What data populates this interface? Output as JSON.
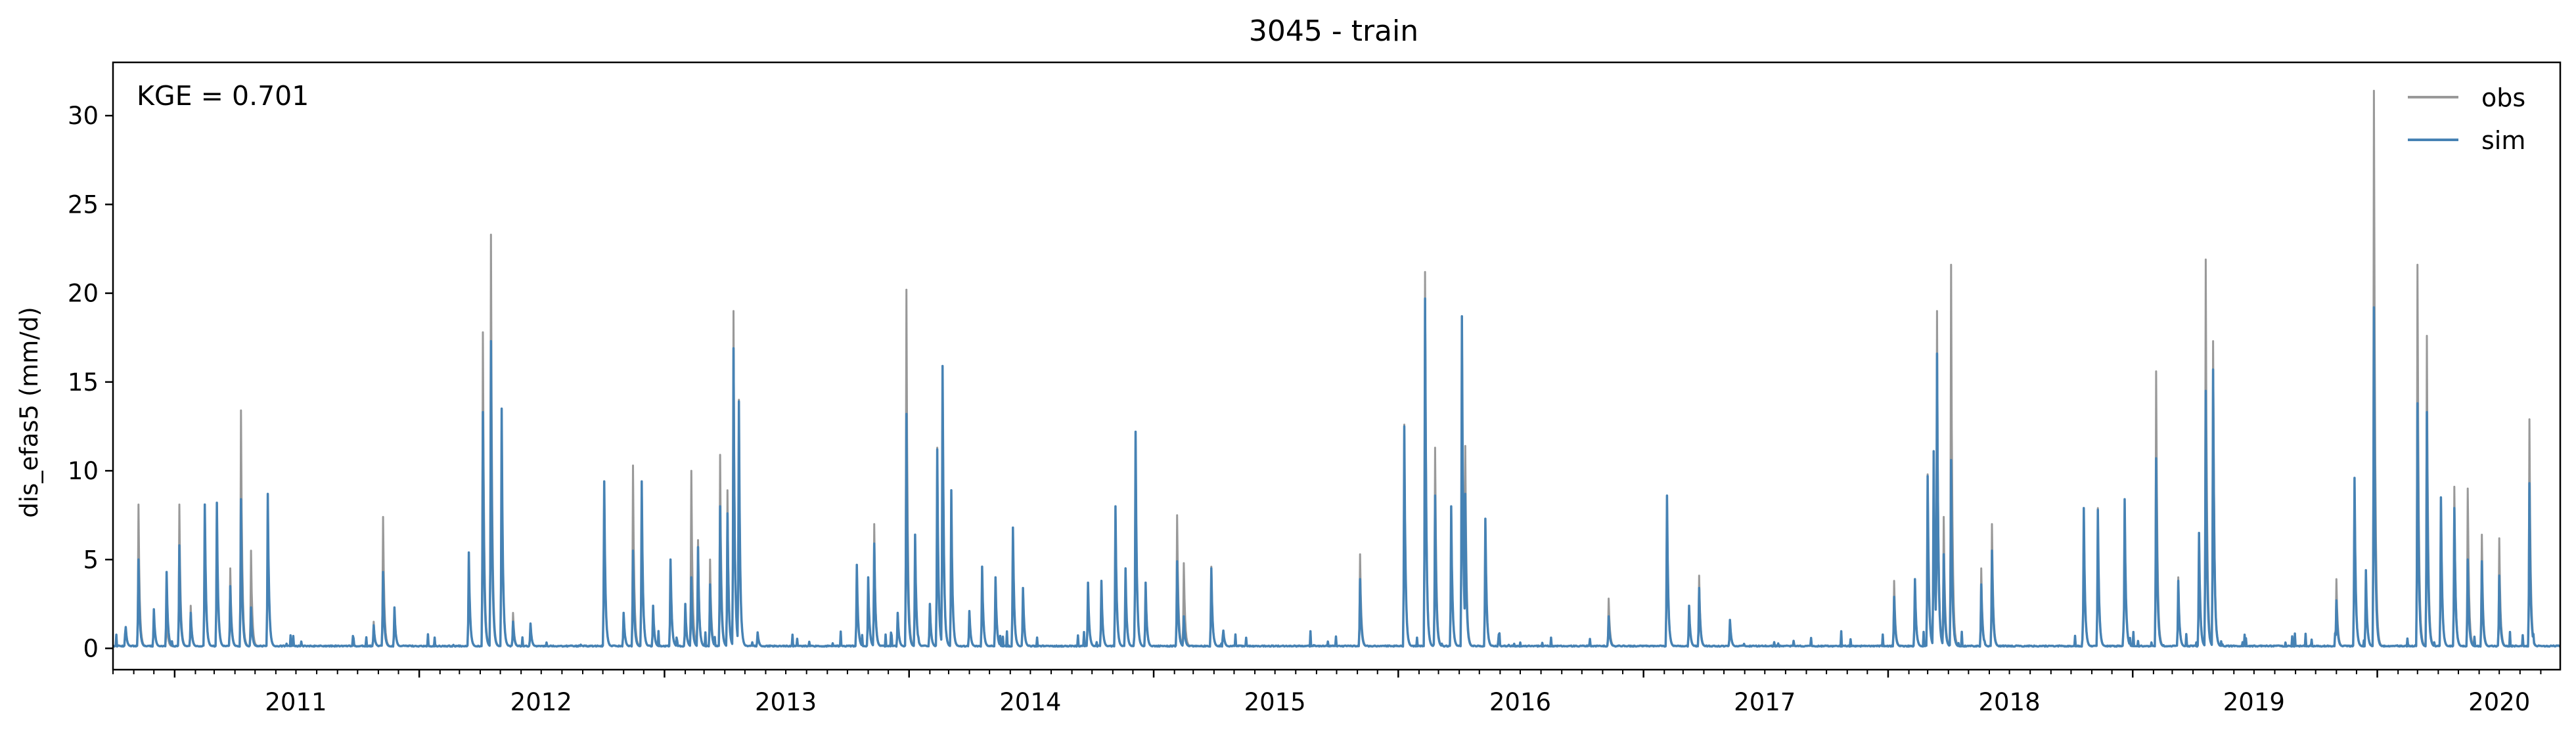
{
  "chart_data": {
    "type": "line",
    "title": "3045 - train",
    "xlabel": "",
    "ylabel": "dis_efas5 (mm/d)",
    "annotation": "KGE = 0.701",
    "legend_position": "top-right",
    "grid": false,
    "xlim": [
      "2010-10-01",
      "2020-09-30"
    ],
    "ylim": [
      -1.2,
      33
    ],
    "x_ticks": [
      "2011",
      "2012",
      "2013",
      "2014",
      "2015",
      "2016",
      "2017",
      "2018",
      "2019",
      "2020"
    ],
    "y_ticks": [
      0,
      5,
      10,
      15,
      20,
      25,
      30
    ],
    "baseline": 0.1,
    "series": [
      {
        "name": "obs",
        "color": "#999999",
        "peaks": [
          [
            "2010-10-20",
            1.2
          ],
          [
            "2010-11-08",
            8.1
          ],
          [
            "2010-12-01",
            2.0
          ],
          [
            "2010-12-20",
            1.8
          ],
          [
            "2011-01-08",
            8.1
          ],
          [
            "2011-01-25",
            2.4
          ],
          [
            "2011-02-15",
            8.1
          ],
          [
            "2011-03-05",
            8.2
          ],
          [
            "2011-03-25",
            4.5
          ],
          [
            "2011-04-10",
            13.4
          ],
          [
            "2011-04-25",
            5.5
          ],
          [
            "2011-05-20",
            8.6
          ],
          [
            "2011-10-25",
            1.5
          ],
          [
            "2011-11-08",
            7.4
          ],
          [
            "2011-11-25",
            2.3
          ],
          [
            "2012-03-15",
            5.4
          ],
          [
            "2012-04-05",
            17.8
          ],
          [
            "2012-04-17",
            23.3
          ],
          [
            "2012-05-03",
            13.5
          ],
          [
            "2012-05-20",
            2.0
          ],
          [
            "2012-06-15",
            1.4
          ],
          [
            "2012-10-03",
            9.4
          ],
          [
            "2012-11-01",
            2.0
          ],
          [
            "2012-11-15",
            10.3
          ],
          [
            "2012-11-28",
            9.4
          ],
          [
            "2012-12-15",
            2.4
          ],
          [
            "2013-01-10",
            5.0
          ],
          [
            "2013-02-01",
            2.5
          ],
          [
            "2013-02-10",
            10.0
          ],
          [
            "2013-02-20",
            6.1
          ],
          [
            "2013-03-10",
            5.0
          ],
          [
            "2013-03-25",
            10.9
          ],
          [
            "2013-04-05",
            8.9
          ],
          [
            "2013-04-14",
            19.0
          ],
          [
            "2013-04-22",
            14.0
          ],
          [
            "2013-05-20",
            0.9
          ],
          [
            "2013-10-15",
            4.7
          ],
          [
            "2013-11-01",
            4.0
          ],
          [
            "2013-11-10",
            7.0
          ],
          [
            "2013-12-15",
            2.0
          ],
          [
            "2013-12-28",
            20.2
          ],
          [
            "2014-01-10",
            6.4
          ],
          [
            "2014-02-01",
            2.5
          ],
          [
            "2014-02-12",
            11.3
          ],
          [
            "2014-02-20",
            15.8
          ],
          [
            "2014-03-05",
            8.9
          ],
          [
            "2014-04-01",
            2.1
          ],
          [
            "2014-04-20",
            4.6
          ],
          [
            "2014-05-10",
            4.0
          ],
          [
            "2014-06-05",
            6.8
          ],
          [
            "2014-06-20",
            3.4
          ],
          [
            "2014-09-25",
            3.7
          ],
          [
            "2014-10-15",
            3.8
          ],
          [
            "2014-11-05",
            8.0
          ],
          [
            "2014-11-20",
            4.5
          ],
          [
            "2014-12-05",
            12.1
          ],
          [
            "2014-12-20",
            3.7
          ],
          [
            "2015-02-05",
            7.5
          ],
          [
            "2015-02-15",
            4.8
          ],
          [
            "2015-03-28",
            4.6
          ],
          [
            "2015-04-15",
            1.0
          ],
          [
            "2015-11-05",
            5.3
          ],
          [
            "2016-01-10",
            12.6
          ],
          [
            "2016-02-10",
            21.2
          ],
          [
            "2016-02-25",
            11.3
          ],
          [
            "2016-03-20",
            8.0
          ],
          [
            "2016-04-05",
            18.7
          ],
          [
            "2016-04-10",
            11.4
          ],
          [
            "2016-05-10",
            7.3
          ],
          [
            "2016-11-10",
            2.8
          ],
          [
            "2017-02-05",
            8.6
          ],
          [
            "2017-03-10",
            2.4
          ],
          [
            "2017-03-25",
            4.1
          ],
          [
            "2017-05-10",
            1.6
          ],
          [
            "2018-01-10",
            3.8
          ],
          [
            "2018-02-10",
            3.9
          ],
          [
            "2018-03-01",
            9.8
          ],
          [
            "2018-03-10",
            11.1
          ],
          [
            "2018-03-15",
            19.0
          ],
          [
            "2018-03-25",
            7.4
          ],
          [
            "2018-04-05",
            21.6
          ],
          [
            "2018-05-20",
            4.5
          ],
          [
            "2018-06-05",
            7.0
          ],
          [
            "2018-10-20",
            7.9
          ],
          [
            "2018-11-10",
            7.9
          ],
          [
            "2018-12-20",
            8.4
          ],
          [
            "2019-02-05",
            15.6
          ],
          [
            "2019-03-10",
            4.0
          ],
          [
            "2019-04-10",
            6.5
          ],
          [
            "2019-04-20",
            21.9
          ],
          [
            "2019-05-01",
            17.3
          ],
          [
            "2019-11-01",
            3.9
          ],
          [
            "2019-11-28",
            9.6
          ],
          [
            "2019-12-15",
            4.4
          ],
          [
            "2019-12-27",
            31.4
          ],
          [
            "2020-03-01",
            21.6
          ],
          [
            "2020-03-15",
            17.6
          ],
          [
            "2020-04-05",
            8.5
          ],
          [
            "2020-04-25",
            9.1
          ],
          [
            "2020-05-15",
            9.0
          ],
          [
            "2020-06-05",
            6.4
          ],
          [
            "2020-07-01",
            6.2
          ],
          [
            "2020-08-15",
            12.9
          ]
        ]
      },
      {
        "name": "sim",
        "color": "#4682b4",
        "peaks": [
          [
            "2010-10-20",
            1.2
          ],
          [
            "2010-11-08",
            5.0
          ],
          [
            "2010-12-01",
            2.2
          ],
          [
            "2010-12-20",
            4.3
          ],
          [
            "2011-01-08",
            5.8
          ],
          [
            "2011-01-25",
            2.0
          ],
          [
            "2011-02-15",
            8.1
          ],
          [
            "2011-03-05",
            8.2
          ],
          [
            "2011-03-25",
            3.5
          ],
          [
            "2011-04-10",
            8.4
          ],
          [
            "2011-04-25",
            2.3
          ],
          [
            "2011-05-20",
            8.7
          ],
          [
            "2011-10-25",
            1.3
          ],
          [
            "2011-11-08",
            4.3
          ],
          [
            "2011-11-25",
            2.3
          ],
          [
            "2012-03-15",
            5.4
          ],
          [
            "2012-04-05",
            13.3
          ],
          [
            "2012-04-17",
            17.3
          ],
          [
            "2012-05-03",
            13.5
          ],
          [
            "2012-05-20",
            1.5
          ],
          [
            "2012-06-15",
            1.4
          ],
          [
            "2012-10-03",
            9.4
          ],
          [
            "2012-11-01",
            2.0
          ],
          [
            "2012-11-15",
            5.5
          ],
          [
            "2012-11-28",
            9.4
          ],
          [
            "2012-12-15",
            2.4
          ],
          [
            "2013-01-10",
            5.0
          ],
          [
            "2013-02-01",
            2.5
          ],
          [
            "2013-02-10",
            4.0
          ],
          [
            "2013-02-20",
            5.7
          ],
          [
            "2013-03-10",
            3.6
          ],
          [
            "2013-03-25",
            8.0
          ],
          [
            "2013-04-05",
            7.6
          ],
          [
            "2013-04-14",
            16.9
          ],
          [
            "2013-04-22",
            13.9
          ],
          [
            "2013-05-20",
            0.9
          ],
          [
            "2013-10-15",
            4.7
          ],
          [
            "2013-11-01",
            4.0
          ],
          [
            "2013-11-10",
            5.9
          ],
          [
            "2013-12-15",
            2.0
          ],
          [
            "2013-12-28",
            13.2
          ],
          [
            "2014-01-10",
            6.4
          ],
          [
            "2014-02-01",
            2.5
          ],
          [
            "2014-02-12",
            11.2
          ],
          [
            "2014-02-20",
            15.9
          ],
          [
            "2014-03-05",
            8.9
          ],
          [
            "2014-04-01",
            2.1
          ],
          [
            "2014-04-20",
            4.6
          ],
          [
            "2014-05-10",
            4.0
          ],
          [
            "2014-06-05",
            6.8
          ],
          [
            "2014-06-20",
            3.4
          ],
          [
            "2014-09-25",
            3.7
          ],
          [
            "2014-10-15",
            3.8
          ],
          [
            "2014-11-05",
            8.0
          ],
          [
            "2014-11-20",
            4.5
          ],
          [
            "2014-12-05",
            12.2
          ],
          [
            "2014-12-20",
            3.7
          ],
          [
            "2015-02-05",
            4.9
          ],
          [
            "2015-02-15",
            1.8
          ],
          [
            "2015-03-28",
            4.5
          ],
          [
            "2015-04-15",
            1.0
          ],
          [
            "2015-11-05",
            3.9
          ],
          [
            "2016-01-10",
            12.5
          ],
          [
            "2016-02-10",
            19.7
          ],
          [
            "2016-02-25",
            8.6
          ],
          [
            "2016-03-20",
            8.0
          ],
          [
            "2016-04-05",
            18.7
          ],
          [
            "2016-04-10",
            8.7
          ],
          [
            "2016-05-10",
            7.3
          ],
          [
            "2016-11-10",
            1.8
          ],
          [
            "2017-02-05",
            8.6
          ],
          [
            "2017-03-10",
            2.4
          ],
          [
            "2017-03-25",
            3.4
          ],
          [
            "2017-05-10",
            1.6
          ],
          [
            "2018-01-10",
            2.9
          ],
          [
            "2018-02-10",
            3.9
          ],
          [
            "2018-03-01",
            9.7
          ],
          [
            "2018-03-10",
            11.1
          ],
          [
            "2018-03-15",
            16.6
          ],
          [
            "2018-03-25",
            5.3
          ],
          [
            "2018-04-05",
            10.6
          ],
          [
            "2018-05-20",
            3.6
          ],
          [
            "2018-06-05",
            5.5
          ],
          [
            "2018-10-20",
            7.9
          ],
          [
            "2018-11-10",
            7.8
          ],
          [
            "2018-12-20",
            8.4
          ],
          [
            "2019-02-05",
            10.7
          ],
          [
            "2019-03-10",
            3.8
          ],
          [
            "2019-04-10",
            6.5
          ],
          [
            "2019-04-20",
            14.5
          ],
          [
            "2019-05-01",
            15.7
          ],
          [
            "2019-11-01",
            2.7
          ],
          [
            "2019-11-28",
            9.6
          ],
          [
            "2019-12-15",
            4.4
          ],
          [
            "2019-12-27",
            19.2
          ],
          [
            "2020-03-01",
            13.8
          ],
          [
            "2020-03-15",
            13.3
          ],
          [
            "2020-04-05",
            8.5
          ],
          [
            "2020-04-25",
            7.9
          ],
          [
            "2020-05-15",
            5.0
          ],
          [
            "2020-06-05",
            4.9
          ],
          [
            "2020-07-01",
            4.1
          ],
          [
            "2020-08-15",
            9.3
          ]
        ]
      }
    ]
  }
}
